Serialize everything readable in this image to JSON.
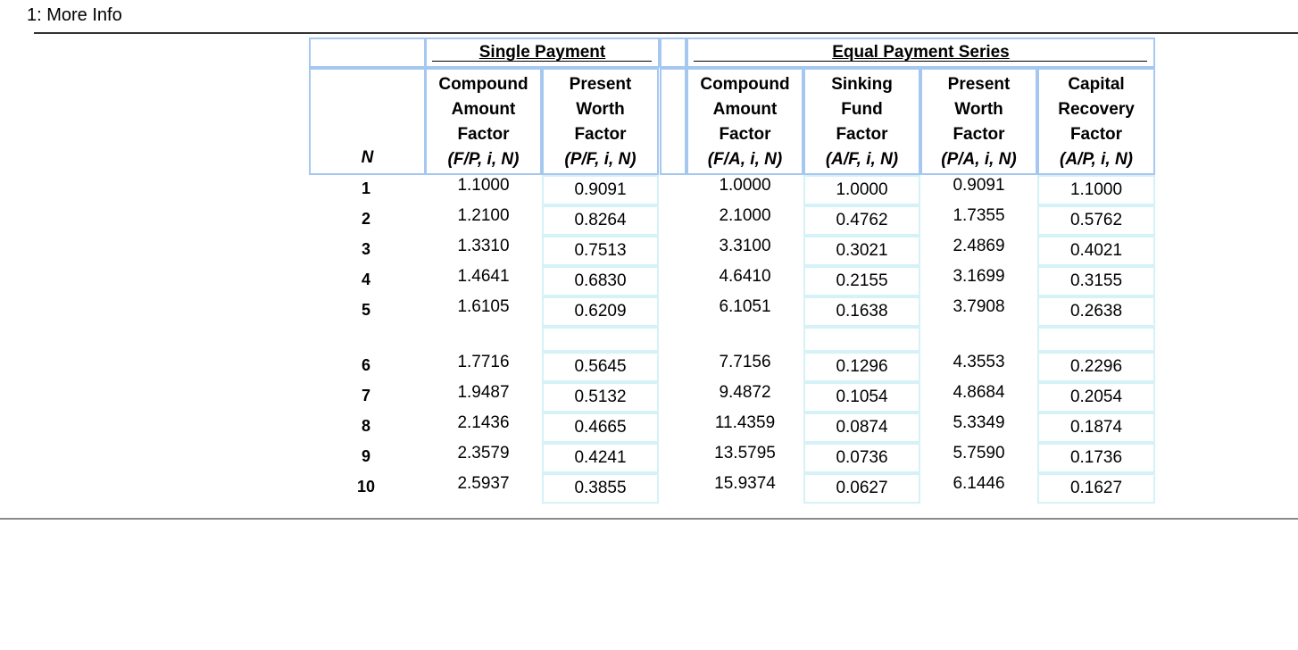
{
  "window": {
    "title": "1: More Info"
  },
  "table": {
    "group_single": "Single Payment",
    "group_equal": "Equal Payment Series",
    "n_label": "N",
    "columns": [
      {
        "l1": "Compound",
        "l2": "Amount",
        "l3": "Factor",
        "sym": "(F/P, i, N)"
      },
      {
        "l1": "Present",
        "l2": "Worth",
        "l3": "Factor",
        "sym": "(P/F, i, N)"
      },
      {
        "l1": "Compound",
        "l2": "Amount",
        "l3": "Factor",
        "sym": "(F/A, i, N)"
      },
      {
        "l1": "Sinking",
        "l2": "Fund",
        "l3": "Factor",
        "sym": "(A/F, i, N)"
      },
      {
        "l1": "Present",
        "l2": "Worth",
        "l3": "Factor",
        "sym": "(P/A, i, N)"
      },
      {
        "l1": "Capital",
        "l2": "Recovery",
        "l3": "Factor",
        "sym": "(A/P, i, N)"
      }
    ],
    "rows": [
      {
        "n": "1",
        "v": [
          "1.1000",
          "0.9091",
          "1.0000",
          "1.0000",
          "0.9091",
          "1.1000"
        ]
      },
      {
        "n": "2",
        "v": [
          "1.2100",
          "0.8264",
          "2.1000",
          "0.4762",
          "1.7355",
          "0.5762"
        ]
      },
      {
        "n": "3",
        "v": [
          "1.3310",
          "0.7513",
          "3.3100",
          "0.3021",
          "2.4869",
          "0.4021"
        ]
      },
      {
        "n": "4",
        "v": [
          "1.4641",
          "0.6830",
          "4.6410",
          "0.2155",
          "3.1699",
          "0.3155"
        ]
      },
      {
        "n": "5",
        "v": [
          "1.6105",
          "0.6209",
          "6.1051",
          "0.1638",
          "3.7908",
          "0.2638"
        ]
      },
      {
        "n": "6",
        "v": [
          "1.7716",
          "0.5645",
          "7.7156",
          "0.1296",
          "4.3553",
          "0.2296"
        ]
      },
      {
        "n": "7",
        "v": [
          "1.9487",
          "0.5132",
          "9.4872",
          "0.1054",
          "4.8684",
          "0.2054"
        ]
      },
      {
        "n": "8",
        "v": [
          "2.1436",
          "0.4665",
          "11.4359",
          "0.0874",
          "5.3349",
          "0.1874"
        ]
      },
      {
        "n": "9",
        "v": [
          "2.3579",
          "0.4241",
          "13.5795",
          "0.0736",
          "5.7590",
          "0.1736"
        ]
      },
      {
        "n": "10",
        "v": [
          "2.5937",
          "0.3855",
          "15.9374",
          "0.0627",
          "6.1446",
          "0.1627"
        ]
      }
    ]
  }
}
